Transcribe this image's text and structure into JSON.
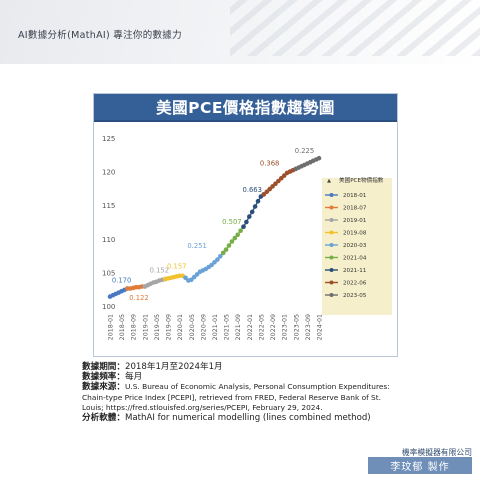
{
  "header": {
    "title": "AI數據分析(MathAI) 專注你的數據力"
  },
  "chart_data": {
    "type": "line",
    "title": "美國PCE價格指數趨勢圖",
    "ylim": [
      100,
      125
    ],
    "yticks": [
      100,
      105,
      110,
      115,
      120,
      125
    ],
    "xlim": [
      "2018-01",
      "2024-01"
    ],
    "xticks": [
      "2018-01",
      "2018-05",
      "2018-09",
      "2019-01",
      "2019-05",
      "2019-09",
      "2020-01",
      "2020-05",
      "2020-09",
      "2021-01",
      "2021-05",
      "2021-09",
      "2022-01",
      "2022-05",
      "2022-09",
      "2023-01",
      "2023-05",
      "2023-09",
      "2024-01"
    ],
    "grid": false,
    "legend_position": "right",
    "legend_title": "美國PCE物價指數",
    "series": [
      {
        "name": "2018-01",
        "color": "#4a78c2",
        "points": [
          [
            "2018-01",
            101.4
          ],
          [
            "2018-02",
            101.6
          ],
          [
            "2018-03",
            101.8
          ],
          [
            "2018-04",
            102.0
          ],
          [
            "2018-05",
            102.2
          ],
          [
            "2018-06",
            102.4
          ],
          [
            "2018-07",
            102.6
          ]
        ]
      },
      {
        "name": "2018-07",
        "color": "#e07b3a",
        "points": [
          [
            "2018-07",
            102.6
          ],
          [
            "2018-08",
            102.6
          ],
          [
            "2018-09",
            102.7
          ],
          [
            "2018-10",
            102.8
          ],
          [
            "2018-11",
            102.8
          ],
          [
            "2018-12",
            102.9
          ],
          [
            "2019-01",
            102.9
          ]
        ]
      },
      {
        "name": "2019-01",
        "color": "#a5a5a5",
        "points": [
          [
            "2019-01",
            102.9
          ],
          [
            "2019-02",
            103.1
          ],
          [
            "2019-03",
            103.3
          ],
          [
            "2019-04",
            103.5
          ],
          [
            "2019-05",
            103.6
          ],
          [
            "2019-06",
            103.8
          ],
          [
            "2019-07",
            103.9
          ],
          [
            "2019-08",
            104.0
          ]
        ]
      },
      {
        "name": "2019-08",
        "color": "#f2c12e",
        "points": [
          [
            "2019-08",
            104.0
          ],
          [
            "2019-09",
            104.1
          ],
          [
            "2019-10",
            104.2
          ],
          [
            "2019-11",
            104.3
          ],
          [
            "2019-12",
            104.4
          ],
          [
            "2020-01",
            104.5
          ],
          [
            "2020-02",
            104.5
          ],
          [
            "2020-03",
            104.2
          ]
        ]
      },
      {
        "name": "2020-03",
        "color": "#6aa2d8",
        "points": [
          [
            "2020-03",
            104.2
          ],
          [
            "2020-04",
            103.8
          ],
          [
            "2020-05",
            103.9
          ],
          [
            "2020-06",
            104.3
          ],
          [
            "2020-07",
            104.7
          ],
          [
            "2020-08",
            105.1
          ],
          [
            "2020-09",
            105.3
          ],
          [
            "2020-10",
            105.5
          ],
          [
            "2020-11",
            105.8
          ],
          [
            "2020-12",
            106.1
          ],
          [
            "2021-01",
            106.5
          ],
          [
            "2021-02",
            106.9
          ],
          [
            "2021-03",
            107.4
          ],
          [
            "2021-04",
            107.9
          ]
        ]
      },
      {
        "name": "2021-04",
        "color": "#78ad47",
        "points": [
          [
            "2021-04",
            107.9
          ],
          [
            "2021-05",
            108.4
          ],
          [
            "2021-06",
            109.0
          ],
          [
            "2021-07",
            109.6
          ],
          [
            "2021-08",
            110.1
          ],
          [
            "2021-09",
            110.6
          ],
          [
            "2021-10",
            111.2
          ],
          [
            "2021-11",
            111.8
          ]
        ]
      },
      {
        "name": "2021-11",
        "color": "#2b4f7a",
        "points": [
          [
            "2021-11",
            111.8
          ],
          [
            "2021-12",
            112.5
          ],
          [
            "2022-01",
            113.3
          ],
          [
            "2022-02",
            114.0
          ],
          [
            "2022-03",
            114.8
          ],
          [
            "2022-04",
            115.6
          ],
          [
            "2022-05",
            116.3
          ],
          [
            "2022-06",
            116.6
          ]
        ]
      },
      {
        "name": "2022-06",
        "color": "#9e4f2c",
        "points": [
          [
            "2022-06",
            116.6
          ],
          [
            "2022-07",
            117.0
          ],
          [
            "2022-08",
            117.4
          ],
          [
            "2022-09",
            117.8
          ],
          [
            "2022-10",
            118.2
          ],
          [
            "2022-11",
            118.6
          ],
          [
            "2022-12",
            119.0
          ],
          [
            "2023-01",
            119.4
          ],
          [
            "2023-02",
            119.8
          ],
          [
            "2023-03",
            120.0
          ],
          [
            "2023-04",
            120.2
          ],
          [
            "2023-05",
            120.4
          ]
        ]
      },
      {
        "name": "2023-05",
        "color": "#6e6e6e",
        "points": [
          [
            "2023-05",
            120.4
          ],
          [
            "2023-06",
            120.6
          ],
          [
            "2023-07",
            120.8
          ],
          [
            "2023-08",
            121.0
          ],
          [
            "2023-09",
            121.2
          ],
          [
            "2023-10",
            121.4
          ],
          [
            "2023-11",
            121.6
          ],
          [
            "2023-12",
            121.8
          ],
          [
            "2024-01",
            122.0
          ]
        ]
      }
    ],
    "annotations": [
      {
        "text": "0.170",
        "x": "2018-05",
        "y": 103.5,
        "color": "#4a78c2"
      },
      {
        "text": "0.122",
        "x": "2018-11",
        "y": 100.9,
        "color": "#e07b3a"
      },
      {
        "text": "0.152",
        "x": "2019-06",
        "y": 105.0,
        "color": "#a5a5a5"
      },
      {
        "text": "0.157",
        "x": "2019-12",
        "y": 105.6,
        "color": "#f2c12e"
      },
      {
        "text": "0.251",
        "x": "2020-07",
        "y": 108.6,
        "color": "#6aa2d8"
      },
      {
        "text": "0.507",
        "x": "2021-07",
        "y": 112.2,
        "color": "#78ad47"
      },
      {
        "text": "0.663",
        "x": "2022-02",
        "y": 117.0,
        "color": "#2b4f7a"
      },
      {
        "text": "0.368",
        "x": "2022-08",
        "y": 120.9,
        "color": "#9e4f2c"
      },
      {
        "text": "0.225",
        "x": "2023-08",
        "y": 122.8,
        "color": "#6e6e6e"
      }
    ]
  },
  "notes": {
    "period_label": "數據期間：",
    "period_value": "2018年1月至2024年1月",
    "freq_label": "數據頻率：",
    "freq_value": "每月",
    "source_label": "數據來源：",
    "source_value": "U.S. Bureau of Economic Analysis, Personal Consumption Expenditures: Chain-type Price Index [PCEPI], retrieved from FRED, Federal Reserve Bank of St. Louis; https://fred.stlouisfed.org/series/PCEPI, February 29, 2024.",
    "software_label": "分析軟體：",
    "software_value": "MathAI for numerical modelling (lines combined method)"
  },
  "footer": {
    "company": "機率模擬器有限公司",
    "author": "李玟郁 製作"
  },
  "colors": {
    "banner": "#355f97",
    "author_bg": "#6f8fb8"
  }
}
